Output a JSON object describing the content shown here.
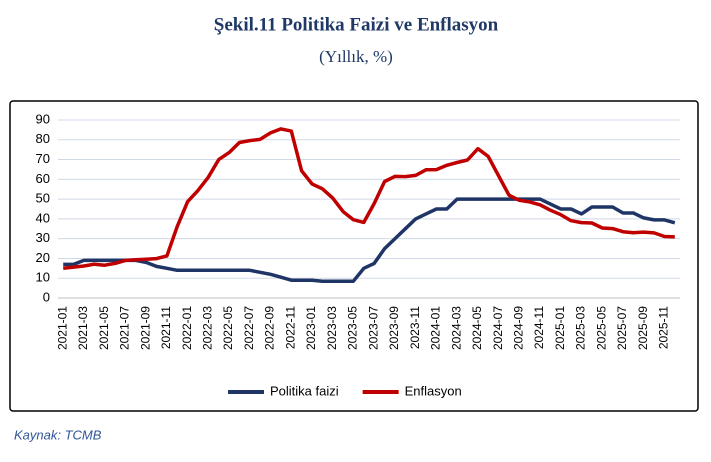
{
  "chart_data": {
    "type": "line",
    "title": "Şekil.11 Politika Faizi ve Enflasyon",
    "subtitle": "(Yıllık, %)",
    "categories": [
      "2021-01",
      null,
      "2021-03",
      null,
      "2021-05",
      null,
      "2021-07",
      null,
      "2021-09",
      null,
      "2021-11",
      null,
      "2022-01",
      null,
      "2022-03",
      null,
      "2022-05",
      null,
      "2022-07",
      null,
      "2022-09",
      null,
      "2022-11",
      null,
      "2023-01",
      null,
      "2023-03",
      null,
      "2023-05",
      null,
      "2023-07",
      null,
      "2023-09",
      null,
      "2023-11",
      null,
      "2024-01",
      null,
      "2024-03",
      null,
      "2024-05",
      null,
      "2024-07",
      null,
      "2024-09",
      null,
      "2024-11",
      null,
      "2025-01",
      null,
      "2025-03",
      null,
      "2025-05",
      null,
      "2025-07",
      null,
      "2025-09",
      null,
      "2025-11",
      null
    ],
    "series": [
      {
        "name": "Politika faizi",
        "color": "#1f3566",
        "values": [
          17,
          17,
          19,
          19,
          19,
          19,
          19,
          19,
          18,
          16,
          15,
          14,
          14,
          14,
          14,
          14,
          14,
          14,
          14,
          13,
          12,
          10.5,
          9,
          9,
          9,
          8.5,
          8.5,
          8.5,
          8.5,
          15,
          17.5,
          25,
          30,
          35,
          40,
          42.5,
          45,
          45,
          50,
          50,
          50,
          50,
          50,
          50,
          50,
          50,
          50,
          47.5,
          45,
          45,
          42.5,
          46,
          46,
          46,
          43,
          43,
          40.5,
          39.5,
          39.5,
          38
        ]
      },
      {
        "name": "Enflasyon",
        "color": "#c00000",
        "values": [
          15.0,
          15.6,
          16.2,
          17.1,
          16.6,
          17.5,
          19.0,
          19.3,
          19.6,
          19.9,
          21.3,
          36.1,
          48.7,
          54.4,
          61.1,
          70.0,
          73.5,
          78.6,
          79.6,
          80.2,
          83.5,
          85.5,
          84.4,
          64.3,
          57.7,
          55.2,
          50.5,
          43.7,
          39.6,
          38.2,
          47.8,
          58.9,
          61.5,
          61.4,
          62.0,
          64.8,
          64.9,
          67.1,
          68.5,
          69.8,
          75.5,
          71.6,
          61.8,
          52.0,
          49.4,
          48.6,
          47.1,
          44.4,
          42.1,
          39.1,
          38.1,
          37.9,
          35.4,
          35.1,
          33.5,
          33.0,
          33.3,
          32.9,
          31.1,
          30.9
        ]
      }
    ],
    "ylim": [
      0,
      90
    ],
    "yticks": [
      0,
      10,
      20,
      30,
      40,
      50,
      60,
      70,
      80,
      90
    ],
    "grid": true,
    "legend": "bottom"
  },
  "source": "Kaynak: TCMB"
}
